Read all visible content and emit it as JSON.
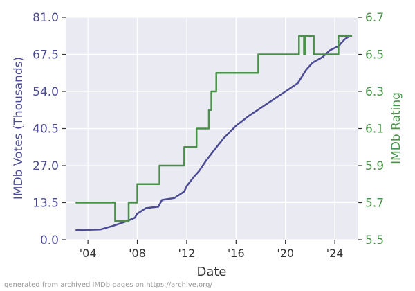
{
  "footer_text": "generated from archived IMDb pages on https://archive.org/",
  "colors": {
    "background": "#ffffff",
    "plot_bg": "#eaeaf2",
    "grid": "#ffffff",
    "votes": "#4b4a95",
    "rating": "#4a9249",
    "axis_text": "#333333"
  },
  "chart_data": {
    "type": "line",
    "xlabel": "Date",
    "xlim": [
      2002.2,
      2025.9
    ],
    "x_ticks": [
      2004,
      2008,
      2012,
      2016,
      2020,
      2024
    ],
    "x_tick_labels": [
      "'04",
      "'08",
      "'12",
      "'16",
      "'20",
      "'24"
    ],
    "grid": true,
    "left_axis": {
      "label": "IMDb Votes (Thousands)",
      "ylim": [
        0,
        81
      ],
      "ticks": [
        0.0,
        13.5,
        27.0,
        40.5,
        54.0,
        67.5,
        81.0
      ],
      "tick_labels": [
        "0.0",
        "13.5",
        "27.0",
        "40.5",
        "54.0",
        "67.5",
        "81.0"
      ]
    },
    "right_axis": {
      "label": "IMDb Rating",
      "ylim": [
        5.5,
        6.7
      ],
      "ticks": [
        5.5,
        5.7,
        5.9,
        6.1,
        6.3,
        6.5,
        6.7
      ],
      "tick_labels": [
        "5.5",
        "5.7",
        "5.9",
        "6.1",
        "6.3",
        "6.5",
        "6.7"
      ]
    },
    "series": [
      {
        "axis": "left",
        "x": [
          2003.0,
          2005.0,
          2006.0,
          2007.0,
          2007.8,
          2008.0,
          2008.7,
          2009.7,
          2010.0,
          2011.0,
          2011.8,
          2012.0,
          2012.6,
          2013.0,
          2013.6,
          2014.2,
          2015.0,
          2016.0,
          2017.0,
          2018.0,
          2019.0,
          2020.0,
          2021.0,
          2021.7,
          2022.2,
          2023.0,
          2023.6,
          2024.3,
          2024.8,
          2025.3
        ],
        "y": [
          3.5,
          3.7,
          5.0,
          6.5,
          8.0,
          9.5,
          11.5,
          12.0,
          14.5,
          15.2,
          17.5,
          19.5,
          23.0,
          25.0,
          29.0,
          32.5,
          37.0,
          41.5,
          45.0,
          48.0,
          51.0,
          54.0,
          57.0,
          62.0,
          64.5,
          66.5,
          69.0,
          70.5,
          73.0,
          74.5
        ]
      },
      {
        "axis": "right",
        "x": [
          2003.0,
          2006.2,
          2006.2,
          2007.3,
          2007.3,
          2008.0,
          2008.0,
          2009.8,
          2009.8,
          2011.8,
          2011.8,
          2012.8,
          2012.8,
          2013.8,
          2013.8,
          2014.0,
          2014.0,
          2014.4,
          2014.4,
          2017.8,
          2017.8,
          2021.1,
          2021.1,
          2021.5,
          2021.5,
          2021.6,
          2021.6,
          2022.3,
          2022.3,
          2024.3,
          2024.3,
          2025.4
        ],
        "y": [
          5.7,
          5.7,
          5.6,
          5.6,
          5.7,
          5.7,
          5.8,
          5.8,
          5.9,
          5.9,
          6.0,
          6.0,
          6.1,
          6.1,
          6.2,
          6.2,
          6.3,
          6.3,
          6.4,
          6.4,
          6.5,
          6.5,
          6.6,
          6.6,
          6.5,
          6.5,
          6.6,
          6.6,
          6.5,
          6.5,
          6.6,
          6.6
        ]
      }
    ]
  }
}
